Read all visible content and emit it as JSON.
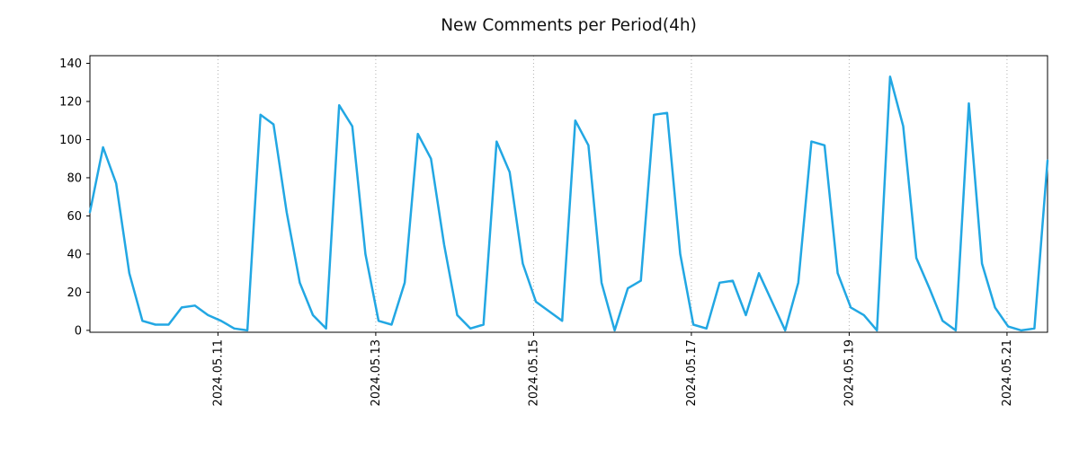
{
  "chart_data": {
    "type": "line",
    "title": "New Comments per Period(4h)",
    "x_interval": "4h",
    "series": [
      {
        "name": "new-comments",
        "values": [
          62,
          96,
          77,
          30,
          5,
          3,
          3,
          12,
          13,
          8,
          5,
          1,
          0,
          113,
          108,
          62,
          25,
          8,
          1,
          118,
          107,
          40,
          5,
          3,
          25,
          103,
          90,
          45,
          8,
          1,
          3,
          99,
          83,
          35,
          15,
          10,
          5,
          110,
          97,
          25,
          0,
          22,
          26,
          113,
          114,
          40,
          3,
          1,
          25,
          26,
          8,
          30,
          15,
          0,
          25,
          99,
          97,
          30,
          12,
          8,
          0,
          133,
          107,
          38,
          22,
          5,
          0,
          119,
          35,
          12,
          2,
          0,
          1,
          89
        ]
      }
    ],
    "x_tick_labels": [
      "2024.05.11",
      "2024.05.13",
      "2024.05.15",
      "2024.05.17",
      "2024.05.19",
      "2024.05.21"
    ],
    "x_tick_positions": [
      9.76,
      21.79,
      33.82,
      45.85,
      57.88,
      69.91
    ],
    "y_ticks": [
      0,
      20,
      40,
      60,
      80,
      100,
      120,
      140
    ],
    "ylim": [
      -1,
      144
    ],
    "ylabel": "",
    "xlabel": "",
    "legend": "none",
    "grid": "vertical-dotted",
    "line_color": "#22a7e3",
    "grid_color": "#b0b0b0",
    "axis_color": "#000000"
  }
}
